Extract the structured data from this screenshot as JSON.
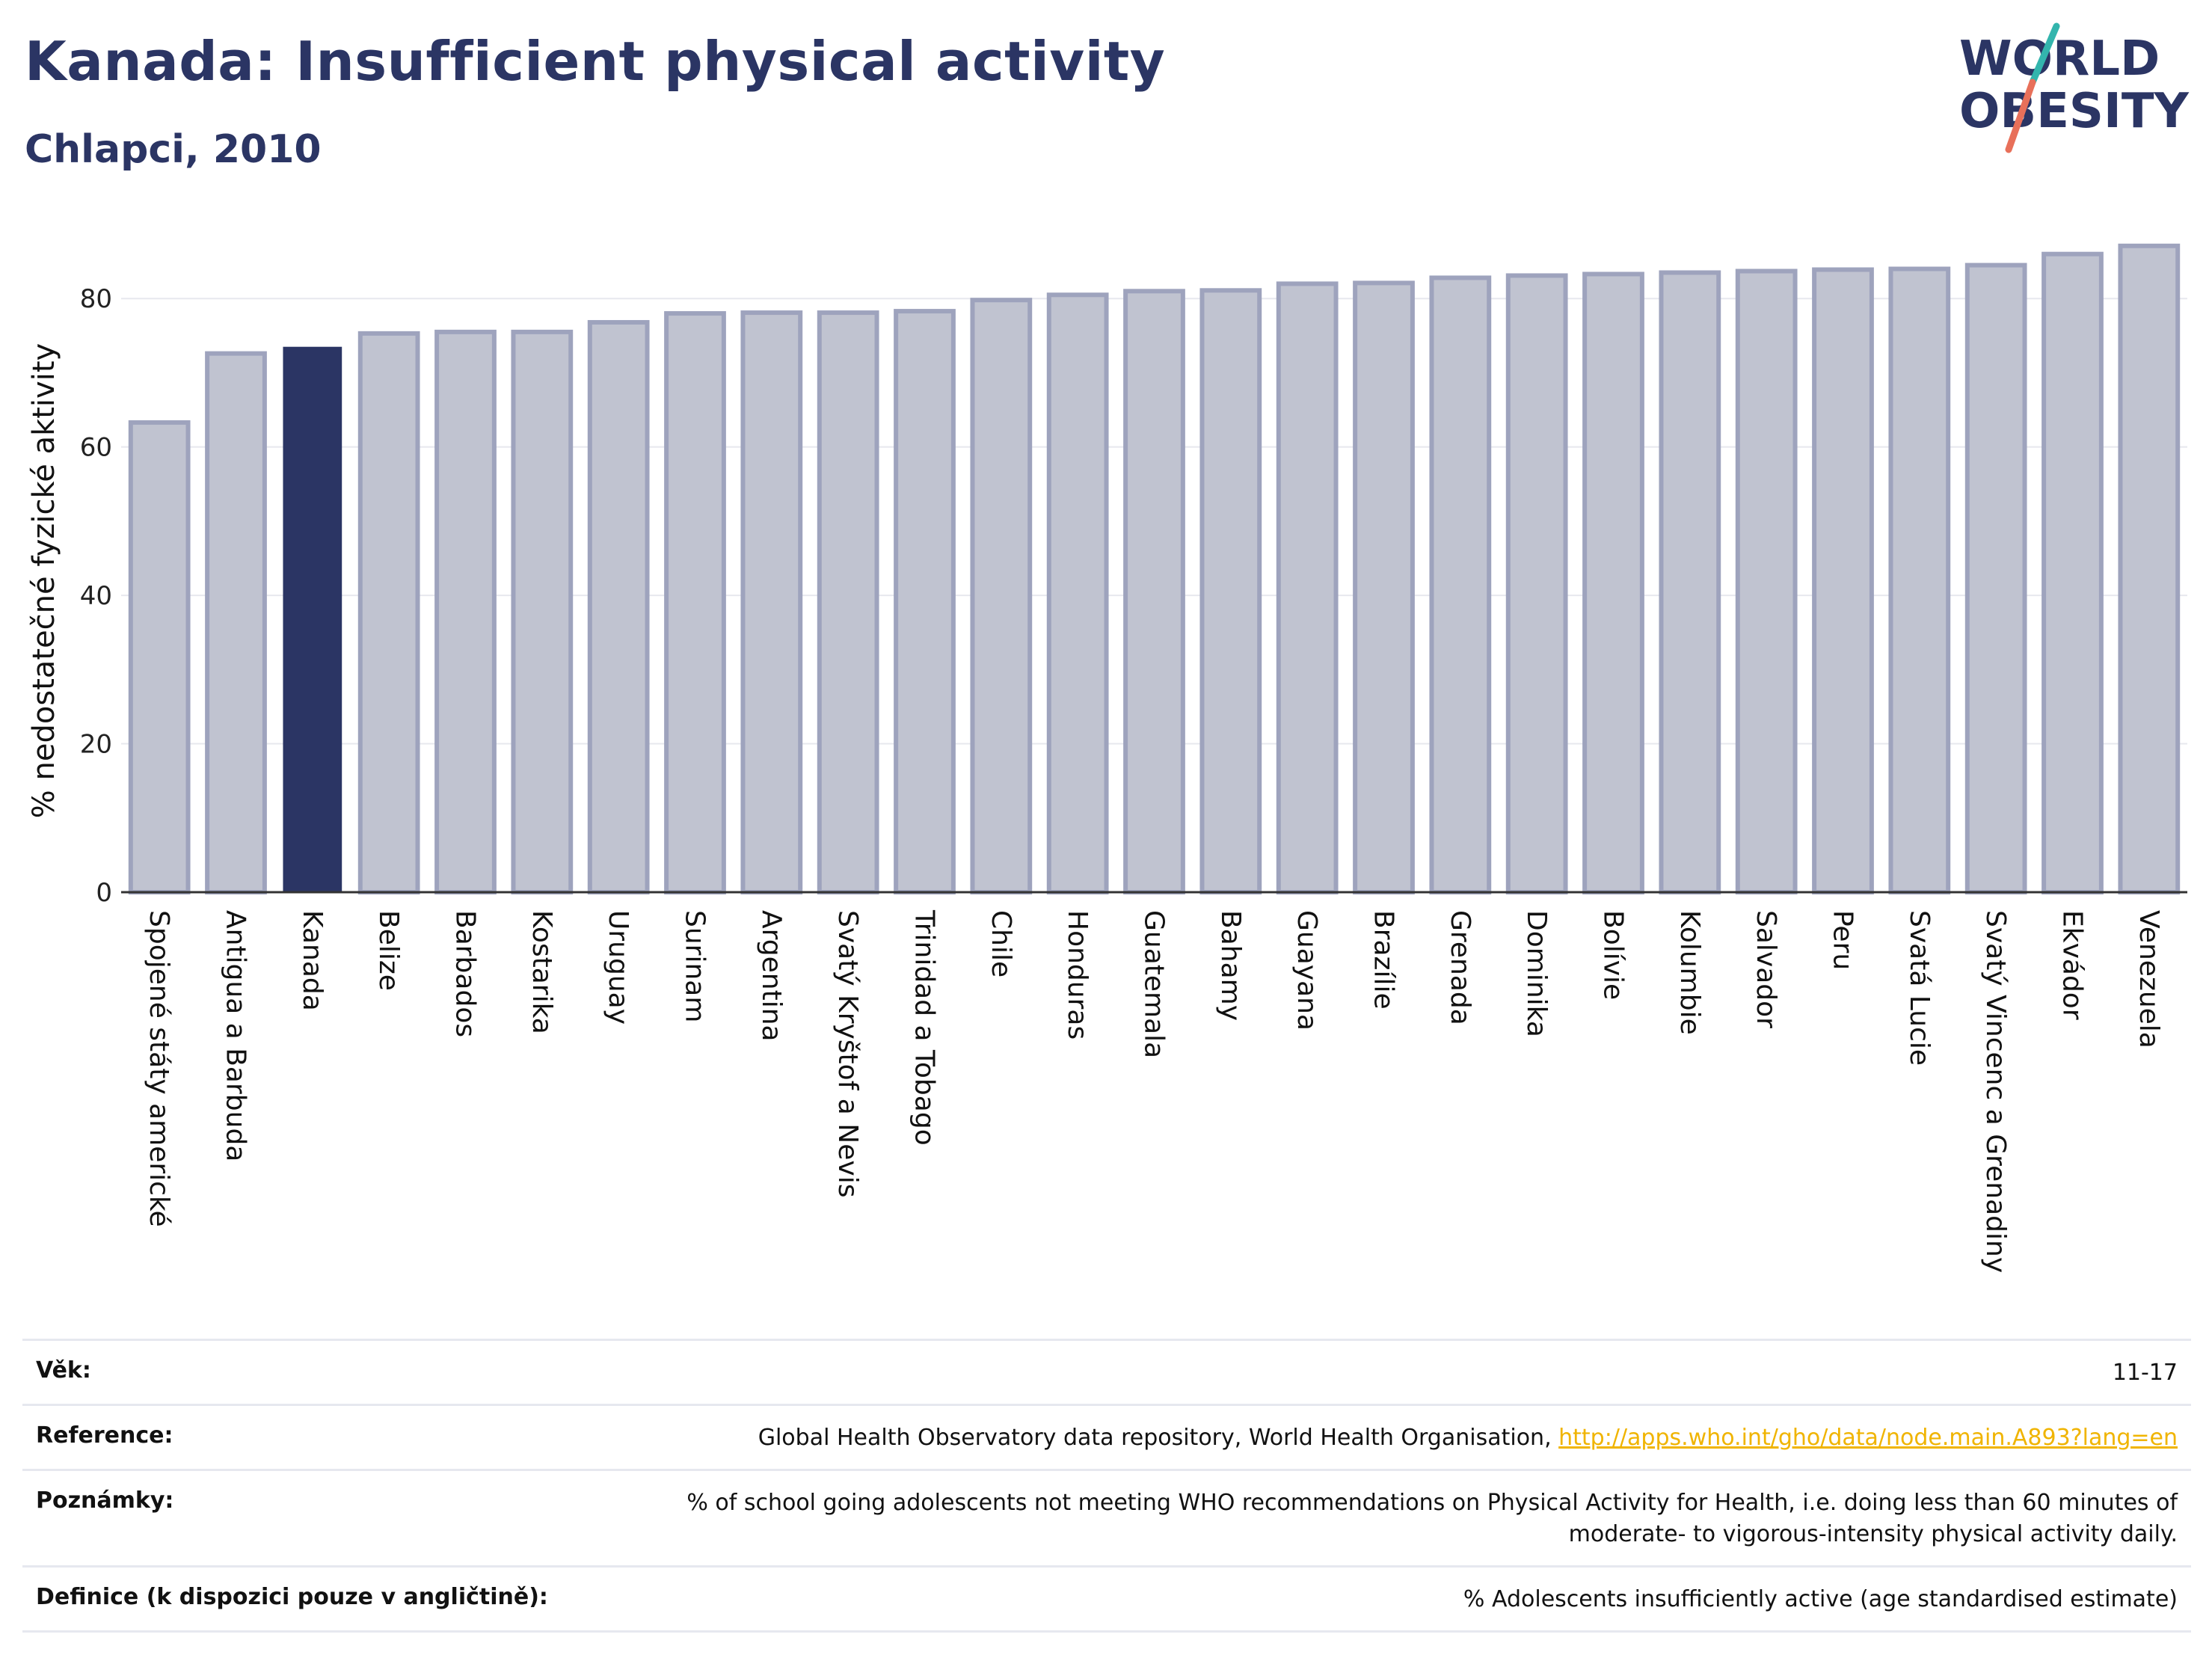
{
  "header": {
    "title": "Kanada: Insufficient physical activity",
    "subtitle": "Chlapci, 2010"
  },
  "logo": {
    "line1": "WORLD",
    "line2": "OBESITY"
  },
  "colors": {
    "highlight": "#2b3564",
    "bar": "#c0c3d0",
    "bar_border": "#9ea3bd",
    "grid": "#e7e8ee",
    "logo_teal": "#33b5ad",
    "logo_coral": "#e8705a",
    "link": "#f0b400"
  },
  "chart_data": {
    "type": "bar",
    "ylabel": "% nedostatečné fyzické aktivity",
    "ylim": [
      0,
      90
    ],
    "yticks": [
      0,
      20,
      40,
      60,
      80
    ],
    "highlight": "Kanada",
    "grid": true,
    "categories": [
      "Spojené státy americké",
      "Antigua a Barbuda",
      "Kanada",
      "Belize",
      "Barbados",
      "Kostarika",
      "Uruguay",
      "Surinam",
      "Argentina",
      "Svatý Kryštof a Nevis",
      "Trinidad a Tobago",
      "Chile",
      "Honduras",
      "Guatemala",
      "Bahamy",
      "Guayana",
      "Brazílie",
      "Grenada",
      "Dominika",
      "Bolívie",
      "Kolumbie",
      "Salvador",
      "Peru",
      "Svatá Lucie",
      "Svatý Vincenc a Grenadiny",
      "Ekvádor",
      "Venezuela"
    ],
    "values": [
      63.3,
      72.6,
      73.4,
      75.3,
      75.5,
      75.5,
      76.8,
      78.0,
      78.1,
      78.1,
      78.3,
      79.8,
      80.5,
      81.0,
      81.1,
      82.0,
      82.1,
      82.8,
      83.1,
      83.3,
      83.5,
      83.7,
      83.9,
      84.0,
      84.5,
      86.0,
      87.1
    ]
  },
  "info": {
    "rows": [
      {
        "label": "Věk:",
        "value": "11-17"
      },
      {
        "label": "Reference:",
        "value": "Global Health Observatory data repository, World Health Organisation, ",
        "link": "http://apps.who.int/gho/data/node.main.A893?lang=en"
      },
      {
        "label": "Poznámky:",
        "value": "% of school going adolescents not meeting WHO recommendations on Physical Activity for Health, i.e. doing less than 60 minutes of moderate- to vigorous-intensity physical activity daily."
      },
      {
        "label": "Definice (k dispozici pouze v angličtině):",
        "value": "% Adolescents insufficiently active (age standardised estimate)"
      }
    ]
  }
}
